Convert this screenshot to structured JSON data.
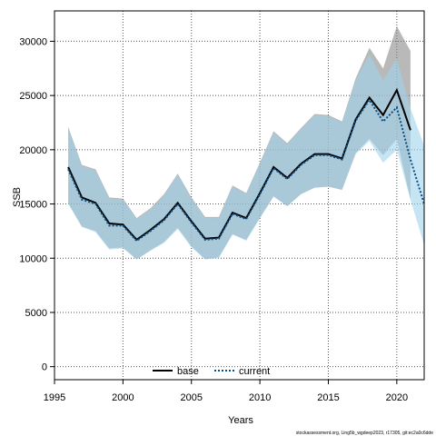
{
  "chart_data": {
    "type": "line",
    "xlabel": "Years",
    "ylabel": "SSB",
    "xlim": [
      1995,
      2022
    ],
    "ylim": [
      -1200,
      32800
    ],
    "x_ticks": [
      1995,
      2000,
      2005,
      2010,
      2015,
      2020
    ],
    "y_ticks": [
      0,
      5000,
      10000,
      15000,
      20000,
      25000,
      30000
    ],
    "grid": true,
    "legend_placement": "bottom-center",
    "footnote": "stockassessment.org, Ling5b_wgdeep2023, r17305, git:ec2a0c6dde",
    "series": [
      {
        "name": "base",
        "color": "#000000",
        "band_color": "#808080",
        "x": [
          1996,
          1997,
          1998,
          1999,
          2000,
          2001,
          2002,
          2003,
          2004,
          2005,
          2006,
          2007,
          2008,
          2009,
          2010,
          2011,
          2012,
          2013,
          2014,
          2015,
          2016,
          2017,
          2018,
          2019,
          2020,
          2021
        ],
        "values": [
          18400,
          15600,
          15100,
          13200,
          13100,
          11700,
          12600,
          13600,
          15100,
          13400,
          11800,
          11900,
          14200,
          13700,
          16000,
          18400,
          17400,
          18700,
          19600,
          19600,
          19200,
          22800,
          24800,
          23200,
          25500,
          21800
        ],
        "lower": [
          15100,
          12900,
          12500,
          10900,
          11000,
          9900,
          10700,
          11500,
          12800,
          11100,
          9900,
          10100,
          12200,
          11700,
          13700,
          15700,
          14800,
          15900,
          16500,
          16600,
          16300,
          19700,
          21000,
          19500,
          21000,
          15400
        ],
        "upper": [
          22100,
          18600,
          18200,
          15600,
          15500,
          13700,
          14600,
          15900,
          17800,
          15600,
          13800,
          13800,
          16700,
          16000,
          18800,
          21700,
          20600,
          22000,
          23300,
          23200,
          22600,
          26600,
          29400,
          27500,
          31400,
          29100
        ]
      },
      {
        "name": "current",
        "color": "#0a4f86",
        "band_color": "#9fd4ee",
        "x": [
          1996,
          1997,
          1998,
          1999,
          2000,
          2001,
          2002,
          2003,
          2004,
          2005,
          2006,
          2007,
          2008,
          2009,
          2010,
          2011,
          2012,
          2013,
          2014,
          2015,
          2016,
          2017,
          2018,
          2019,
          2020,
          2021,
          2022
        ],
        "values": [
          18200,
          15400,
          15000,
          13000,
          13000,
          11600,
          12500,
          13500,
          15000,
          13300,
          11700,
          11800,
          14100,
          13600,
          15900,
          18300,
          17300,
          18600,
          19500,
          19500,
          19100,
          22700,
          24600,
          22600,
          23900,
          19100,
          15000
        ],
        "lower": [
          15000,
          12900,
          12400,
          10800,
          10900,
          9900,
          10700,
          11400,
          12700,
          11000,
          9900,
          10000,
          12200,
          11600,
          13700,
          15700,
          14800,
          15900,
          16500,
          16600,
          16300,
          19600,
          20800,
          18800,
          20000,
          15400,
          11200
        ],
        "upper": [
          22000,
          18500,
          18100,
          15500,
          15400,
          13600,
          14500,
          15800,
          17700,
          15500,
          13700,
          13700,
          16600,
          15900,
          18700,
          21600,
          20500,
          21900,
          23200,
          23100,
          22500,
          26400,
          28800,
          26400,
          28400,
          23800,
          20400
        ]
      }
    ]
  }
}
